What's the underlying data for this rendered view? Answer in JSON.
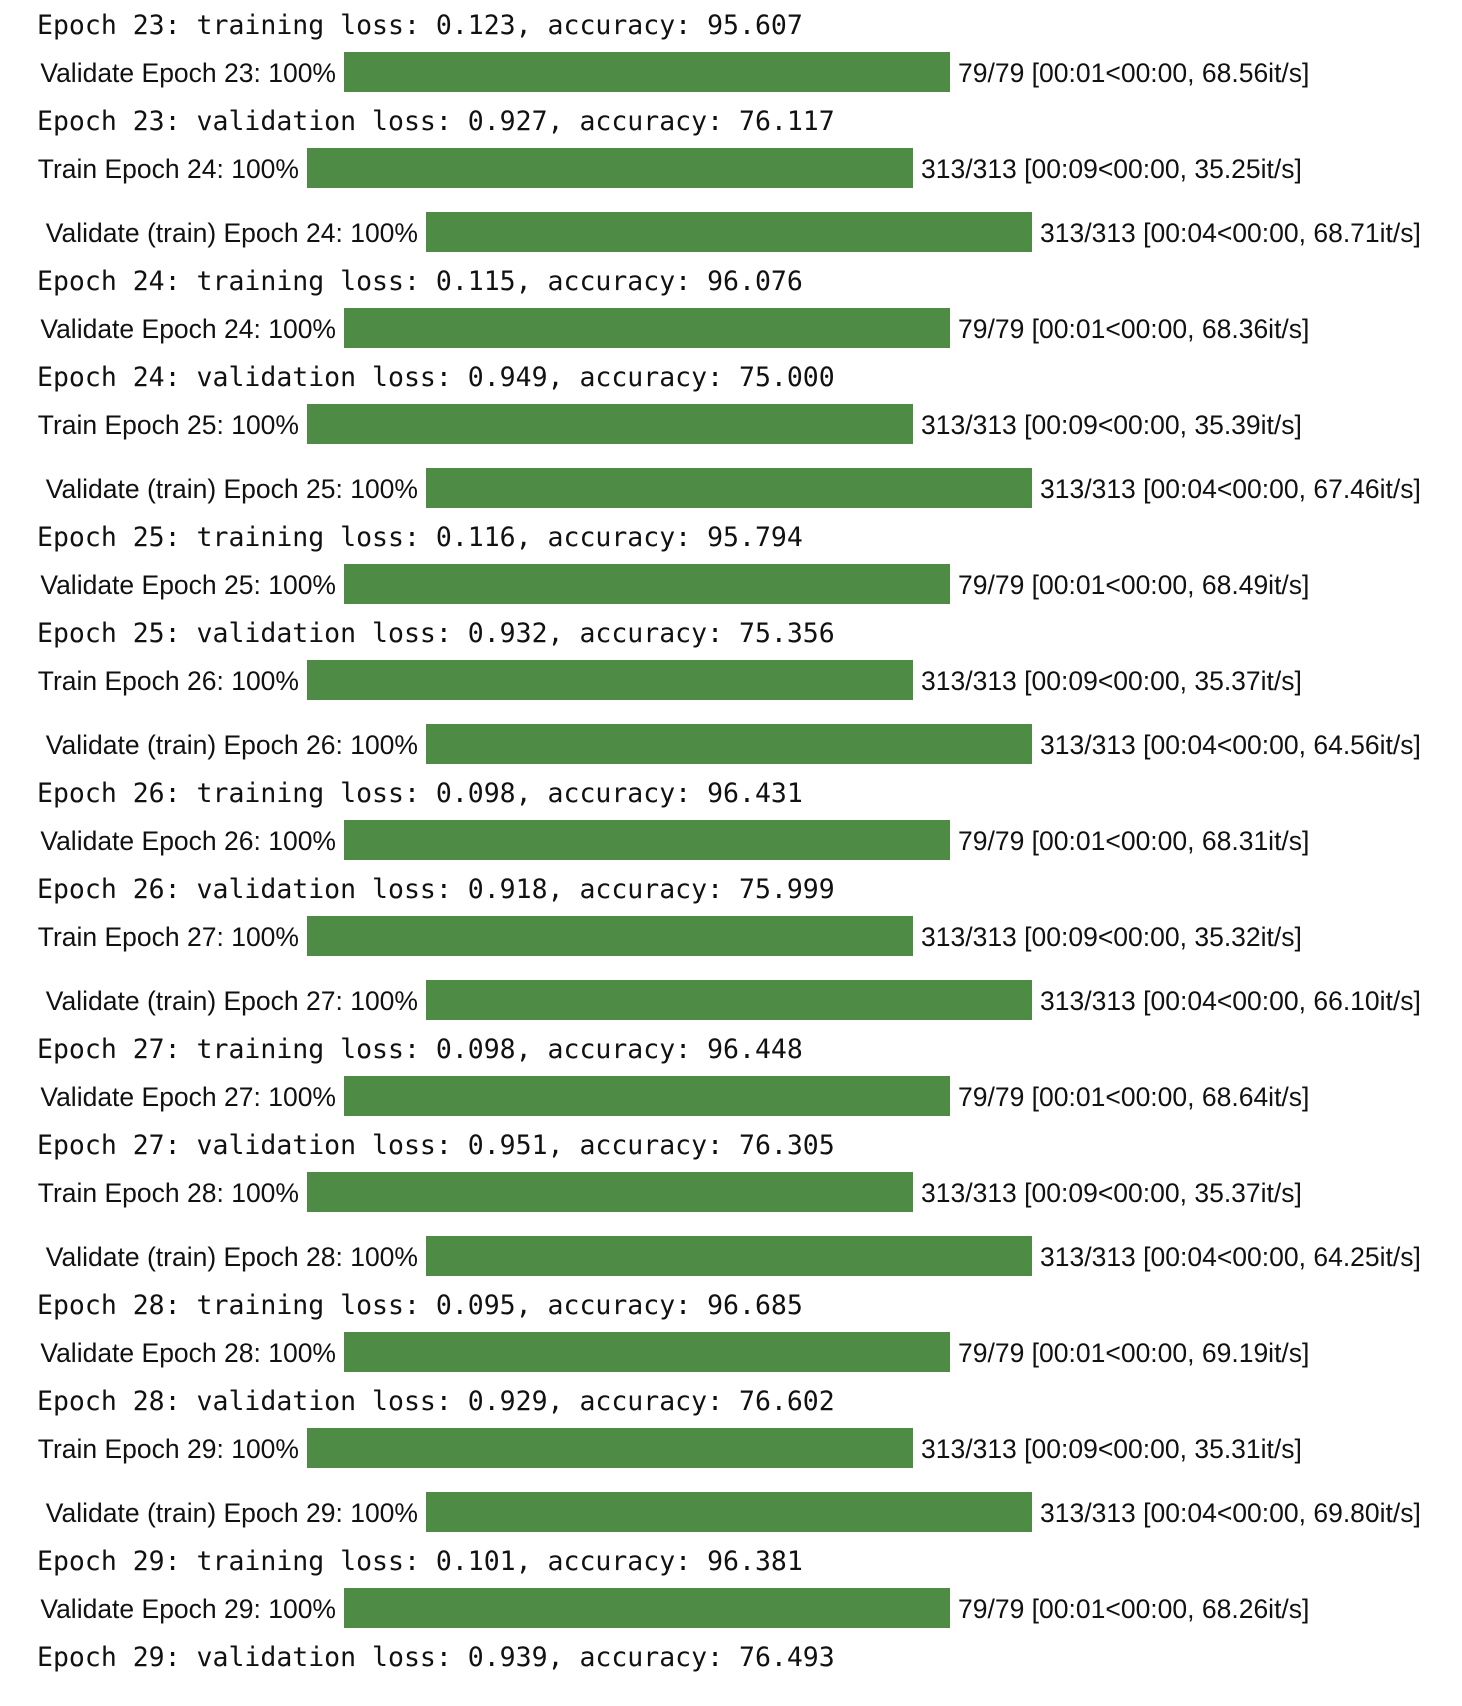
{
  "bar_color": "#4e8c45",
  "lines": [
    {
      "kind": "text",
      "text": "Epoch 23: training loss: 0.123, accuracy: 95.607"
    },
    {
      "kind": "bar",
      "type": "val",
      "desc": "Validate Epoch 23: 100%",
      "progress": 1.0,
      "stats": "79/79 [00:01<00:00, 68.56it/s]"
    },
    {
      "kind": "text",
      "text": "Epoch 23: validation loss: 0.927, accuracy: 76.117"
    },
    {
      "kind": "bar",
      "type": "train",
      "desc": "Train Epoch 24: 100%",
      "progress": 1.0,
      "stats": "313/313 [00:09<00:00, 35.25it/s]"
    },
    {
      "kind": "bar",
      "type": "valtrain",
      "desc": "Validate (train) Epoch 24: 100%",
      "progress": 1.0,
      "stats": "313/313 [00:04<00:00, 68.71it/s]"
    },
    {
      "kind": "text",
      "text": "Epoch 24: training loss: 0.115, accuracy: 96.076"
    },
    {
      "kind": "bar",
      "type": "val",
      "desc": "Validate Epoch 24: 100%",
      "progress": 1.0,
      "stats": "79/79 [00:01<00:00, 68.36it/s]"
    },
    {
      "kind": "text",
      "text": "Epoch 24: validation loss: 0.949, accuracy: 75.000"
    },
    {
      "kind": "bar",
      "type": "train",
      "desc": "Train Epoch 25: 100%",
      "progress": 1.0,
      "stats": "313/313 [00:09<00:00, 35.39it/s]"
    },
    {
      "kind": "bar",
      "type": "valtrain",
      "desc": "Validate (train) Epoch 25: 100%",
      "progress": 1.0,
      "stats": "313/313 [00:04<00:00, 67.46it/s]"
    },
    {
      "kind": "text",
      "text": "Epoch 25: training loss: 0.116, accuracy: 95.794"
    },
    {
      "kind": "bar",
      "type": "val",
      "desc": "Validate Epoch 25: 100%",
      "progress": 1.0,
      "stats": "79/79 [00:01<00:00, 68.49it/s]"
    },
    {
      "kind": "text",
      "text": "Epoch 25: validation loss: 0.932, accuracy: 75.356"
    },
    {
      "kind": "bar",
      "type": "train",
      "desc": "Train Epoch 26: 100%",
      "progress": 1.0,
      "stats": "313/313 [00:09<00:00, 35.37it/s]"
    },
    {
      "kind": "bar",
      "type": "valtrain",
      "desc": "Validate (train) Epoch 26: 100%",
      "progress": 1.0,
      "stats": "313/313 [00:04<00:00, 64.56it/s]"
    },
    {
      "kind": "text",
      "text": "Epoch 26: training loss: 0.098, accuracy: 96.431"
    },
    {
      "kind": "bar",
      "type": "val",
      "desc": "Validate Epoch 26: 100%",
      "progress": 1.0,
      "stats": "79/79 [00:01<00:00, 68.31it/s]"
    },
    {
      "kind": "text",
      "text": "Epoch 26: validation loss: 0.918, accuracy: 75.999"
    },
    {
      "kind": "bar",
      "type": "train",
      "desc": "Train Epoch 27: 100%",
      "progress": 1.0,
      "stats": "313/313 [00:09<00:00, 35.32it/s]"
    },
    {
      "kind": "bar",
      "type": "valtrain",
      "desc": "Validate (train) Epoch 27: 100%",
      "progress": 1.0,
      "stats": "313/313 [00:04<00:00, 66.10it/s]"
    },
    {
      "kind": "text",
      "text": "Epoch 27: training loss: 0.098, accuracy: 96.448"
    },
    {
      "kind": "bar",
      "type": "val",
      "desc": "Validate Epoch 27: 100%",
      "progress": 1.0,
      "stats": "79/79 [00:01<00:00, 68.64it/s]"
    },
    {
      "kind": "text",
      "text": "Epoch 27: validation loss: 0.951, accuracy: 76.305"
    },
    {
      "kind": "bar",
      "type": "train",
      "desc": "Train Epoch 28: 100%",
      "progress": 1.0,
      "stats": "313/313 [00:09<00:00, 35.37it/s]"
    },
    {
      "kind": "bar",
      "type": "valtrain",
      "desc": "Validate (train) Epoch 28: 100%",
      "progress": 1.0,
      "stats": "313/313 [00:04<00:00, 64.25it/s]"
    },
    {
      "kind": "text",
      "text": "Epoch 28: training loss: 0.095, accuracy: 96.685"
    },
    {
      "kind": "bar",
      "type": "val",
      "desc": "Validate Epoch 28: 100%",
      "progress": 1.0,
      "stats": "79/79 [00:01<00:00, 69.19it/s]"
    },
    {
      "kind": "text",
      "text": "Epoch 28: validation loss: 0.929, accuracy: 76.602"
    },
    {
      "kind": "bar",
      "type": "train",
      "desc": "Train Epoch 29: 100%",
      "progress": 1.0,
      "stats": "313/313 [00:09<00:00, 35.31it/s]"
    },
    {
      "kind": "bar",
      "type": "valtrain",
      "desc": "Validate (train) Epoch 29: 100%",
      "progress": 1.0,
      "stats": "313/313 [00:04<00:00, 69.80it/s]"
    },
    {
      "kind": "text",
      "text": "Epoch 29: training loss: 0.101, accuracy: 96.381"
    },
    {
      "kind": "bar",
      "type": "val",
      "desc": "Validate Epoch 29: 100%",
      "progress": 1.0,
      "stats": "79/79 [00:01<00:00, 68.26it/s]"
    },
    {
      "kind": "text",
      "text": "Epoch 29: validation loss: 0.939, accuracy: 76.493"
    }
  ]
}
